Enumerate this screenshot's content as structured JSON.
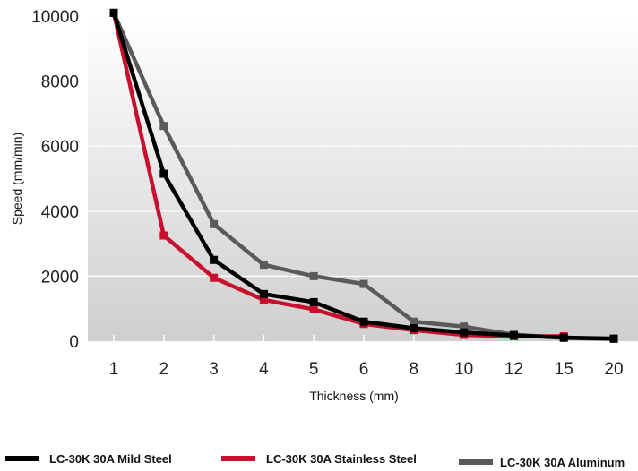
{
  "chart_data": {
    "type": "line",
    "title": "",
    "xlabel": "Thickness (mm)",
    "ylabel": "Speed (mm/min)",
    "x": [
      "1",
      "2",
      "3",
      "4",
      "5",
      "6",
      "8",
      "10",
      "12",
      "15",
      "20"
    ],
    "ylim": [
      0,
      10000
    ],
    "yticks": [
      0,
      2000,
      4000,
      6000,
      8000,
      10000
    ],
    "grid": true,
    "legend_position": "bottom",
    "series": [
      {
        "name": "LC-30K 30A Mild Steel",
        "color": "#000000",
        "values": [
          10100,
          5150,
          2500,
          1450,
          1200,
          600,
          400,
          270,
          180,
          110,
          80
        ]
      },
      {
        "name": "LC-30K 30A Stainless Steel",
        "color": "#c8102e",
        "values": [
          10100,
          3250,
          1950,
          1270,
          980,
          530,
          340,
          190,
          150,
          150,
          null
        ]
      },
      {
        "name": "LC-30K 30A Aluminum",
        "color": "#5a5a5a",
        "values": [
          10100,
          6620,
          3600,
          2350,
          2000,
          1760,
          600,
          450,
          200,
          100,
          70
        ]
      }
    ]
  }
}
